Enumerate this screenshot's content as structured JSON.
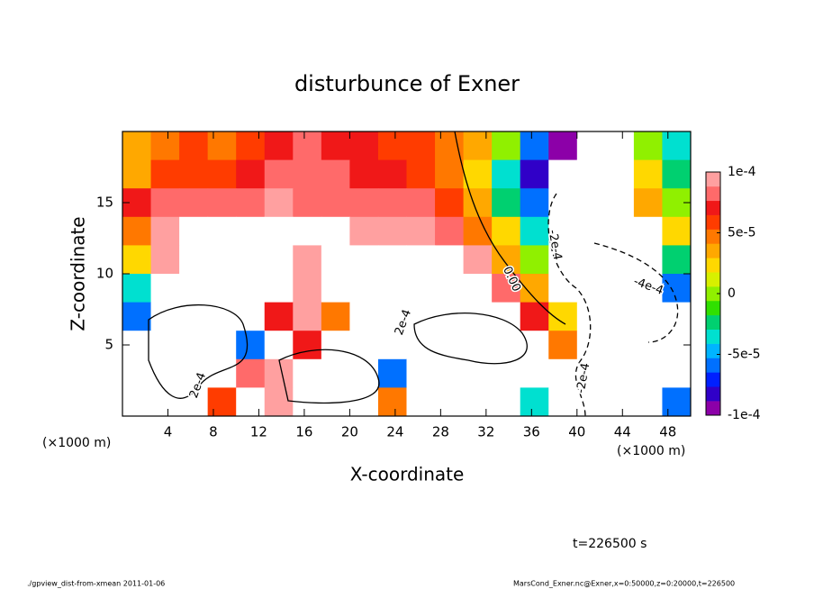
{
  "chart_data": {
    "type": "contour",
    "title": "disturbunce of Exner",
    "xlabel": "X-coordinate",
    "ylabel": "Z-coordinate",
    "xunit": "(×1000 m)",
    "yunit": "(×1000 m)",
    "xlim": [
      0,
      50
    ],
    "xticks": [
      4,
      8,
      12,
      16,
      20,
      24,
      28,
      32,
      36,
      40,
      44,
      48
    ],
    "ylim": [
      0,
      20
    ],
    "yticks": [
      5,
      10,
      15
    ],
    "clim": [
      -0.0001,
      0.0001
    ],
    "cticks": [
      {
        "value": 0.0001,
        "label": "1e-4"
      },
      {
        "value": 5e-05,
        "label": "5e-5"
      },
      0,
      {
        "value": -5e-05,
        "label": "-5e-5"
      },
      {
        "value": -0.0001,
        "label": "-1e-4"
      }
    ],
    "colormap": [
      "#8c00a8",
      "#3000c8",
      "#0020ff",
      "#0070ff",
      "#00b4ff",
      "#00e0d0",
      "#00d070",
      "#30e000",
      "#90f000",
      "#d8f000",
      "#ffd800",
      "#ffa800",
      "#ff7800",
      "#ff3c00",
      "#f01818",
      "#ff6a6a",
      "#ffa0a0"
    ],
    "z": [
      [
        3e-05,
        5e-05,
        6e-05,
        5e-05,
        6e-05,
        7e-05,
        8e-05,
        7e-05,
        7e-05,
        6e-05,
        6e-05,
        5e-05,
        3e-05,
        0,
        -6e-05,
        -0.0001,
        -0.00015,
        -0.00015,
        0,
        -4e-05
      ],
      [
        4e-05,
        6e-05,
        6e-05,
        6e-05,
        7e-05,
        8e-05,
        8e-05,
        8e-05,
        7e-05,
        7e-05,
        6e-05,
        5e-05,
        2e-05,
        -3e-05,
        -8e-05,
        -0.00015,
        -0.00015,
        -0.00015,
        2e-05,
        -2e-05
      ],
      [
        7e-05,
        8e-05,
        8e-05,
        8e-05,
        8e-05,
        9e-05,
        8e-05,
        8e-05,
        8e-05,
        8e-05,
        8e-05,
        6e-05,
        3e-05,
        -2e-05,
        -6e-05,
        -0.00015,
        -0.00015,
        -0.00015,
        3e-05,
        0
      ],
      [
        5e-05,
        9e-05,
        0.00015,
        0.00015,
        0.00015,
        0.00015,
        0.00015,
        0.00015,
        9e-05,
        9e-05,
        9e-05,
        8e-05,
        5e-05,
        2e-05,
        -3e-05,
        -0.00015,
        -0.00015,
        -0.00015,
        -0.00015,
        2e-05
      ],
      [
        2e-05,
        9e-05,
        0.00015,
        0.00015,
        0.00015,
        0.00015,
        9e-05,
        0.00015,
        0.00015,
        0.00015,
        0.00015,
        0.00015,
        9e-05,
        4e-05,
        0,
        -0.00015,
        -0.00015,
        -0.00015,
        -0.00015,
        -2e-05
      ],
      [
        -3e-05,
        0.00015,
        0.00015,
        0.00015,
        0.00015,
        0.00015,
        9e-05,
        0.00015,
        0.00015,
        0.00015,
        0.00015,
        0.00015,
        0.00015,
        8e-05,
        4e-05,
        -0.00015,
        -0.00015,
        -0.00015,
        -0.00015,
        -6e-05
      ],
      [
        -6e-05,
        0.00015,
        0.00015,
        0.00015,
        0.00015,
        7e-05,
        9e-05,
        5e-05,
        0.00015,
        0.00015,
        0.00015,
        0.00015,
        0.00015,
        0.00015,
        7e-05,
        2e-05,
        -0.00015,
        -0.00015,
        -0.00015,
        -0.00015
      ],
      [
        -0.00015,
        0.00015,
        0.00015,
        0.00015,
        -6e-05,
        0.00015,
        7e-05,
        0.00015,
        0.00015,
        0.00015,
        0.00015,
        0.00015,
        0.00015,
        0.00015,
        0.00015,
        5e-05,
        -0.00015,
        -0.00015,
        -0.00015,
        -0.00015
      ],
      [
        -0.00015,
        0.00015,
        0.00015,
        0.00015,
        8e-05,
        9e-05,
        0.00015,
        0.00015,
        0.00015,
        -6e-05,
        0.00015,
        0.00015,
        0.00015,
        0.00015,
        0.00015,
        0.00015,
        -0.00015,
        -0.00015,
        -0.00015,
        -0.00015
      ],
      [
        -0.00015,
        0.00015,
        0.00015,
        6e-05,
        0.00015,
        9e-05,
        0.00015,
        0.00015,
        0.00015,
        5e-05,
        0.00015,
        0.00015,
        0.00015,
        0.00015,
        -4e-05,
        0.00015,
        -0.00015,
        -0.00015,
        -0.00015,
        -6e-05
      ]
    ],
    "annotations": [
      "2e-4",
      "2e-4",
      "0.00",
      "-2e-4",
      "-4e-4",
      "-2e-4"
    ],
    "time_label": "t=226500 s",
    "footer_left": "./gpview_dist-from-xmean  2011-01-06",
    "footer_right": "MarsCond_Exner.nc@Exner,x=0:50000,z=0:20000,t=226500"
  }
}
